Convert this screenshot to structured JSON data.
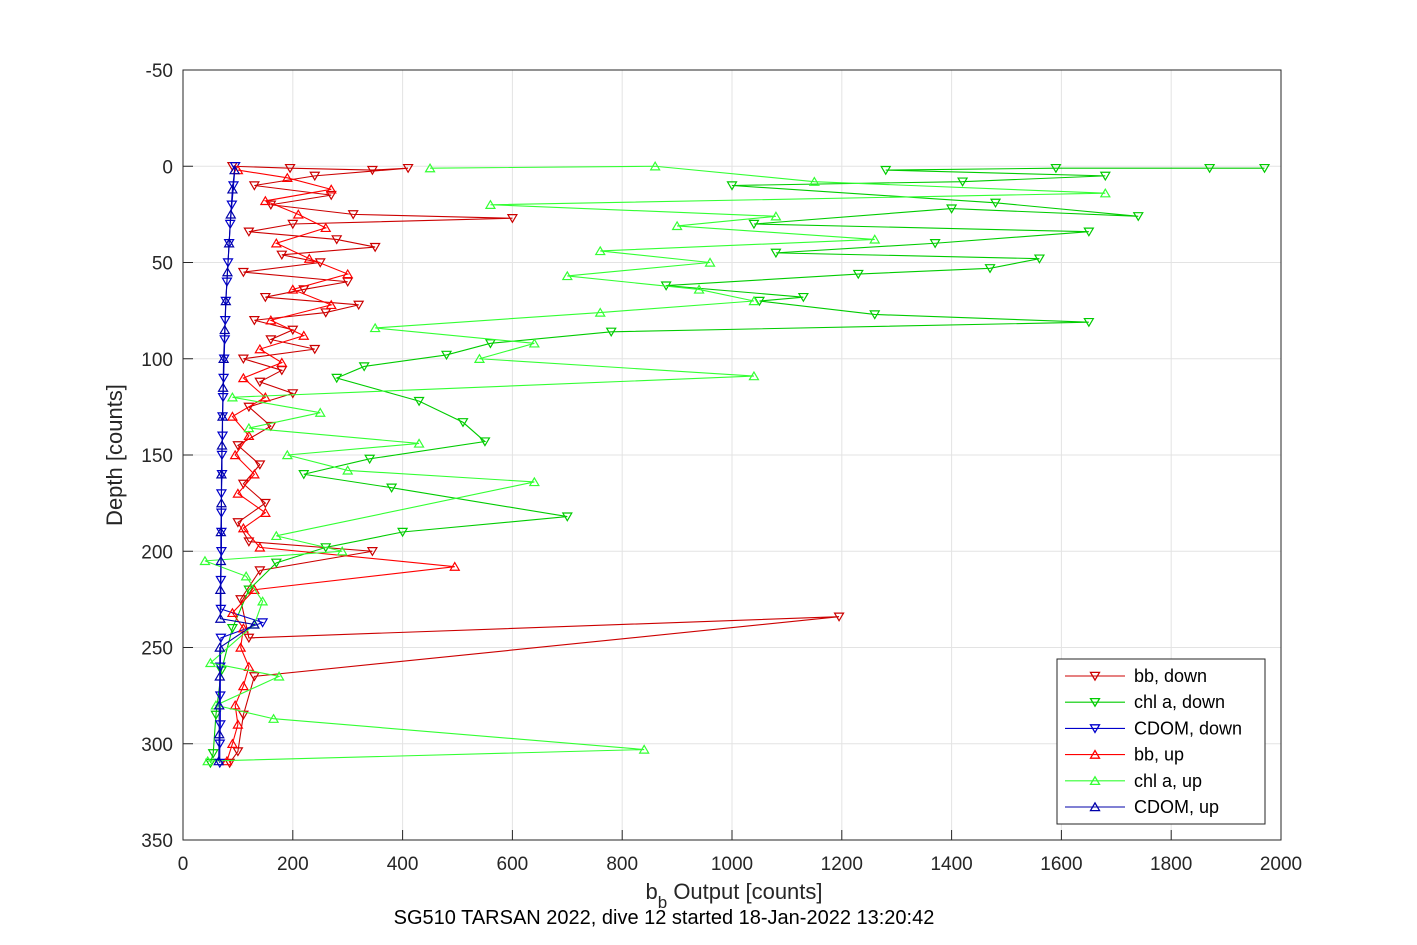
{
  "chart_data": {
    "type": "line",
    "xlabel": "b",
    "xlabel_subscript": "b",
    "xlabel_rest": " Output [counts]",
    "ylabel": "Depth [counts]",
    "subtitle": "SG510 TARSAN 2022, dive 12 started 18-Jan-2022 13:20:42",
    "xlim": [
      0,
      2000
    ],
    "ylim": [
      -50,
      350
    ],
    "y_reversed": true,
    "grid": true,
    "xticks": [
      0,
      200,
      400,
      600,
      800,
      1000,
      1200,
      1400,
      1600,
      1800,
      2000
    ],
    "yticks": [
      -50,
      0,
      50,
      100,
      150,
      200,
      250,
      300,
      350
    ],
    "legend_position": "bottom-right",
    "series": [
      {
        "name": "bb, down",
        "color": "#cc0000",
        "marker": "triangle-down",
        "points": [
          [
            90,
            0
          ],
          [
            195,
            1
          ],
          [
            345,
            2
          ],
          [
            410,
            1
          ],
          [
            240,
            5
          ],
          [
            130,
            10
          ],
          [
            270,
            15
          ],
          [
            160,
            20
          ],
          [
            310,
            25
          ],
          [
            600,
            27
          ],
          [
            200,
            30
          ],
          [
            120,
            34
          ],
          [
            280,
            38
          ],
          [
            350,
            42
          ],
          [
            180,
            46
          ],
          [
            250,
            50
          ],
          [
            110,
            55
          ],
          [
            300,
            60
          ],
          [
            220,
            64
          ],
          [
            150,
            68
          ],
          [
            320,
            72
          ],
          [
            260,
            76
          ],
          [
            130,
            80
          ],
          [
            200,
            85
          ],
          [
            160,
            90
          ],
          [
            240,
            95
          ],
          [
            110,
            100
          ],
          [
            180,
            106
          ],
          [
            140,
            112
          ],
          [
            200,
            118
          ],
          [
            120,
            125
          ],
          [
            160,
            135
          ],
          [
            100,
            145
          ],
          [
            140,
            155
          ],
          [
            110,
            165
          ],
          [
            150,
            175
          ],
          [
            100,
            185
          ],
          [
            120,
            195
          ],
          [
            345,
            200
          ],
          [
            140,
            210
          ],
          [
            105,
            225
          ],
          [
            120,
            245
          ],
          [
            1195,
            234
          ],
          [
            130,
            265
          ],
          [
            110,
            285
          ],
          [
            100,
            304
          ],
          [
            85,
            310
          ]
        ]
      },
      {
        "name": "chl a, down",
        "color": "#00cc00",
        "marker": "triangle-down",
        "points": [
          [
            1970,
            1
          ],
          [
            1870,
            1
          ],
          [
            1590,
            1
          ],
          [
            1280,
            2
          ],
          [
            1680,
            5
          ],
          [
            1420,
            8
          ],
          [
            1000,
            10
          ],
          [
            1480,
            19
          ],
          [
            1740,
            26
          ],
          [
            1400,
            22
          ],
          [
            1040,
            30
          ],
          [
            1650,
            34
          ],
          [
            1370,
            40
          ],
          [
            1080,
            45
          ],
          [
            1560,
            48
          ],
          [
            1470,
            53
          ],
          [
            1230,
            56
          ],
          [
            880,
            62
          ],
          [
            1130,
            68
          ],
          [
            1050,
            70
          ],
          [
            1260,
            77
          ],
          [
            1650,
            81
          ],
          [
            780,
            86
          ],
          [
            560,
            92
          ],
          [
            480,
            98
          ],
          [
            330,
            104
          ],
          [
            280,
            110
          ],
          [
            430,
            122
          ],
          [
            510,
            133
          ],
          [
            550,
            143
          ],
          [
            340,
            152
          ],
          [
            220,
            160
          ],
          [
            380,
            167
          ],
          [
            700,
            182
          ],
          [
            400,
            190
          ],
          [
            260,
            198
          ],
          [
            170,
            206
          ],
          [
            120,
            220
          ],
          [
            90,
            240
          ],
          [
            70,
            262
          ],
          [
            60,
            285
          ],
          [
            55,
            305
          ],
          [
            50,
            310
          ]
        ]
      },
      {
        "name": "CDOM, down",
        "color": "#0000cc",
        "marker": "triangle-down",
        "points": [
          [
            95,
            0
          ],
          [
            92,
            10
          ],
          [
            89,
            20
          ],
          [
            86,
            30
          ],
          [
            84,
            40
          ],
          [
            82,
            50
          ],
          [
            80,
            60
          ],
          [
            78,
            70
          ],
          [
            77,
            80
          ],
          [
            76,
            90
          ],
          [
            75,
            100
          ],
          [
            74,
            110
          ],
          [
            73,
            120
          ],
          [
            72,
            130
          ],
          [
            72,
            140
          ],
          [
            71,
            150
          ],
          [
            71,
            160
          ],
          [
            70,
            170
          ],
          [
            70,
            180
          ],
          [
            70,
            190
          ],
          [
            70,
            200
          ],
          [
            69,
            215
          ],
          [
            69,
            230
          ],
          [
            145,
            237
          ],
          [
            69,
            245
          ],
          [
            68,
            260
          ],
          [
            68,
            275
          ],
          [
            68,
            290
          ],
          [
            67,
            300
          ],
          [
            67,
            310
          ]
        ]
      },
      {
        "name": "bb, up",
        "color": "#ff0000",
        "marker": "triangle-up",
        "points": [
          [
            80,
            309
          ],
          [
            90,
            300
          ],
          [
            100,
            290
          ],
          [
            95,
            280
          ],
          [
            110,
            270
          ],
          [
            120,
            260
          ],
          [
            105,
            250
          ],
          [
            110,
            240
          ],
          [
            90,
            232
          ],
          [
            130,
            220
          ],
          [
            495,
            208
          ],
          [
            140,
            198
          ],
          [
            110,
            188
          ],
          [
            150,
            180
          ],
          [
            100,
            170
          ],
          [
            130,
            160
          ],
          [
            95,
            150
          ],
          [
            120,
            140
          ],
          [
            90,
            130
          ],
          [
            150,
            120
          ],
          [
            110,
            110
          ],
          [
            180,
            102
          ],
          [
            140,
            95
          ],
          [
            220,
            88
          ],
          [
            160,
            80
          ],
          [
            270,
            72
          ],
          [
            200,
            64
          ],
          [
            300,
            56
          ],
          [
            230,
            48
          ],
          [
            170,
            40
          ],
          [
            260,
            32
          ],
          [
            210,
            25
          ],
          [
            150,
            18
          ],
          [
            270,
            12
          ],
          [
            190,
            6
          ],
          [
            100,
            2
          ]
        ]
      },
      {
        "name": "chl a, up",
        "color": "#33ff33",
        "marker": "triangle-up",
        "points": [
          [
            45,
            309
          ],
          [
            840,
            303
          ],
          [
            165,
            287
          ],
          [
            60,
            280
          ],
          [
            175,
            265
          ],
          [
            50,
            258
          ],
          [
            130,
            238
          ],
          [
            145,
            226
          ],
          [
            115,
            213
          ],
          [
            40,
            205
          ],
          [
            290,
            200
          ],
          [
            170,
            192
          ],
          [
            640,
            164
          ],
          [
            300,
            158
          ],
          [
            190,
            150
          ],
          [
            430,
            144
          ],
          [
            120,
            136
          ],
          [
            250,
            128
          ],
          [
            90,
            120
          ],
          [
            1040,
            109
          ],
          [
            540,
            100
          ],
          [
            640,
            92
          ],
          [
            350,
            84
          ],
          [
            760,
            76
          ],
          [
            1040,
            70
          ],
          [
            940,
            64
          ],
          [
            700,
            57
          ],
          [
            960,
            50
          ],
          [
            760,
            44
          ],
          [
            1260,
            38
          ],
          [
            900,
            31
          ],
          [
            1080,
            26
          ],
          [
            560,
            20
          ],
          [
            1680,
            14
          ],
          [
            1150,
            8
          ],
          [
            860,
            0
          ],
          [
            450,
            1
          ]
        ]
      },
      {
        "name": "CDOM, up",
        "color": "#0000aa",
        "marker": "triangle-up",
        "points": [
          [
            65,
            309
          ],
          [
            66,
            295
          ],
          [
            66,
            280
          ],
          [
            67,
            265
          ],
          [
            67,
            250
          ],
          [
            130,
            238
          ],
          [
            68,
            235
          ],
          [
            68,
            220
          ],
          [
            69,
            205
          ],
          [
            69,
            190
          ],
          [
            70,
            175
          ],
          [
            70,
            160
          ],
          [
            71,
            145
          ],
          [
            72,
            130
          ],
          [
            73,
            115
          ],
          [
            74,
            100
          ],
          [
            76,
            85
          ],
          [
            78,
            70
          ],
          [
            81,
            55
          ],
          [
            84,
            40
          ],
          [
            87,
            25
          ],
          [
            90,
            12
          ],
          [
            94,
            2
          ]
        ]
      }
    ]
  }
}
